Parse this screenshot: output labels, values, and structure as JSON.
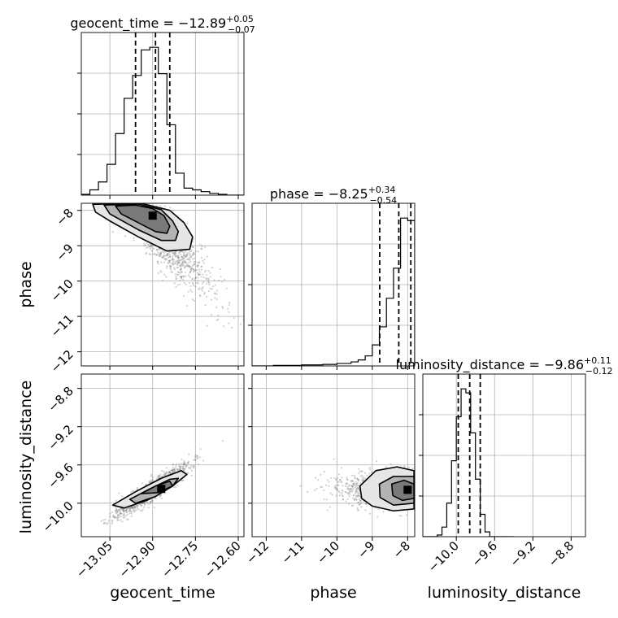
{
  "chart_data": {
    "type": "corner",
    "parameters": [
      "geocent_time",
      "phase",
      "luminosity_distance"
    ],
    "titles": [
      {
        "param": "geocent_time",
        "prefix": "geocent_time = ",
        "median": "−12.89",
        "plus": "+0.05",
        "minus": "−0.07"
      },
      {
        "param": "phase",
        "prefix": "phase = ",
        "median": "−8.25",
        "plus": "+0.34",
        "minus": "−0.54"
      },
      {
        "param": "luminosity_distance",
        "prefix": "luminosity_distance = ",
        "median": "−9.86",
        "plus": "+0.11",
        "minus": "−0.12"
      }
    ],
    "axis_labels": {
      "geocent_time": "geocent_time",
      "phase": "phase",
      "luminosity_distance": "luminosity_distance"
    },
    "ranges": {
      "geocent_time": [
        -13.15,
        -12.58
      ],
      "phase": [
        -12.4,
        -7.8
      ],
      "luminosity_distance": [
        -10.35,
        -8.65
      ]
    },
    "ticks": {
      "geocent_time": [
        {
          "v": -13.05,
          "label": "−13.05"
        },
        {
          "v": -12.9,
          "label": "−12.90"
        },
        {
          "v": -12.75,
          "label": "−12.75"
        },
        {
          "v": -12.6,
          "label": "−12.60"
        }
      ],
      "phase": [
        {
          "v": -12,
          "label": "−12"
        },
        {
          "v": -11,
          "label": "−11"
        },
        {
          "v": -10,
          "label": "−10"
        },
        {
          "v": -9,
          "label": "−9"
        },
        {
          "v": -8,
          "label": "−8"
        }
      ],
      "luminosity_distance": [
        {
          "v": -10.0,
          "label": "−10.0"
        },
        {
          "v": -9.6,
          "label": "−9.6"
        },
        {
          "v": -9.2,
          "label": "−9.2"
        },
        {
          "v": -8.8,
          "label": "−8.8"
        }
      ]
    },
    "quantiles": {
      "geocent_time": [
        -12.96,
        -12.89,
        -12.84
      ],
      "phase": [
        -8.79,
        -8.25,
        -7.91
      ],
      "luminosity_distance": [
        -9.98,
        -9.86,
        -9.75
      ]
    },
    "histograms": {
      "geocent_time": {
        "edges": [
          -13.15,
          -13.12,
          -13.09,
          -13.06,
          -13.03,
          -13.0,
          -12.97,
          -12.94,
          -12.91,
          -12.88,
          -12.85,
          -12.82,
          -12.79,
          -12.76,
          -12.73,
          -12.7,
          -12.67,
          -12.64,
          -12.61,
          -12.58
        ],
        "counts": [
          1,
          6,
          15,
          35,
          70,
          110,
          136,
          165,
          168,
          138,
          80,
          25,
          8,
          6,
          4,
          2,
          1,
          0,
          0
        ]
      },
      "phase": {
        "edges": [
          -12.4,
          -12.2,
          -12.0,
          -11.8,
          -11.6,
          -11.4,
          -11.2,
          -11.0,
          -10.8,
          -10.6,
          -10.4,
          -10.2,
          -10.0,
          -9.8,
          -9.6,
          -9.4,
          -9.2,
          -9.0,
          -8.8,
          -8.6,
          -8.4,
          -8.2,
          -8.0,
          -7.8
        ],
        "counts": [
          0,
          0,
          0,
          1,
          1,
          1,
          1,
          2,
          2,
          2,
          3,
          3,
          5,
          5,
          8,
          12,
          20,
          42,
          78,
          135,
          195,
          295,
          290
        ]
      },
      "luminosity_distance": {
        "edges": [
          -10.35,
          -10.3,
          -10.25,
          -10.2,
          -10.15,
          -10.1,
          -10.05,
          -10.0,
          -9.95,
          -9.9,
          -9.85,
          -9.8,
          -9.75,
          -9.7,
          -9.65,
          -9.6,
          -9.55,
          -9.5,
          -9.45,
          -9.4
        ],
        "counts": [
          0,
          0,
          0,
          2,
          12,
          42,
          95,
          150,
          185,
          180,
          130,
          72,
          28,
          6,
          0,
          0,
          0,
          0,
          0
        ]
      }
    },
    "scatter_2d": {
      "phase_vs_geocent_time": {
        "peak": {
          "x": -12.9,
          "y": -8.15
        },
        "contour_levels": [
          [
            [
              -13.03,
              -7.88
            ],
            [
              -12.96,
              -7.85
            ],
            [
              -12.9,
              -7.95
            ],
            [
              -12.86,
              -8.15
            ],
            [
              -12.84,
              -8.45
            ],
            [
              -12.85,
              -8.65
            ],
            [
              -12.89,
              -8.6
            ],
            [
              -12.95,
              -8.35
            ],
            [
              -13.01,
              -8.1
            ]
          ],
          [
            [
              -13.07,
              -7.85
            ],
            [
              -12.95,
              -7.82
            ],
            [
              -12.87,
              -7.98
            ],
            [
              -12.83,
              -8.3
            ],
            [
              -12.81,
              -8.6
            ],
            [
              -12.82,
              -8.85
            ],
            [
              -12.87,
              -8.85
            ],
            [
              -12.95,
              -8.55
            ],
            [
              -13.05,
              -8.1
            ]
          ],
          [
            [
              -13.11,
              -7.83
            ],
            [
              -12.94,
              -7.8
            ],
            [
              -12.84,
              -8.0
            ],
            [
              -12.79,
              -8.35
            ],
            [
              -12.76,
              -8.75
            ],
            [
              -12.77,
              -9.1
            ],
            [
              -12.85,
              -9.15
            ],
            [
              -12.95,
              -8.75
            ],
            [
              -13.05,
              -8.3
            ],
            [
              -13.1,
              -8.05
            ]
          ]
        ]
      },
      "luminosity_distance_vs_geocent_time": {
        "peak": {
          "x": -12.87,
          "y": -9.85
        },
        "contour_levels": [
          [
            [
              -12.94,
              -9.9
            ],
            [
              -12.89,
              -9.82
            ],
            [
              -12.84,
              -9.77
            ],
            [
              -12.83,
              -9.82
            ],
            [
              -12.88,
              -9.89
            ]
          ],
          [
            [
              -12.98,
              -9.96
            ],
            [
              -12.91,
              -9.85
            ],
            [
              -12.84,
              -9.75
            ],
            [
              -12.81,
              -9.74
            ],
            [
              -12.83,
              -9.82
            ],
            [
              -12.89,
              -9.93
            ],
            [
              -12.96,
              -10.0
            ]
          ],
          [
            [
              -13.04,
              -10.02
            ],
            [
              -12.96,
              -9.88
            ],
            [
              -12.87,
              -9.74
            ],
            [
              -12.8,
              -9.66
            ],
            [
              -12.78,
              -9.7
            ],
            [
              -12.83,
              -9.82
            ],
            [
              -12.92,
              -9.97
            ],
            [
              -13.0,
              -10.05
            ]
          ]
        ]
      },
      "luminosity_distance_vs_phase": {
        "peak": {
          "x": -8.0,
          "y": -9.86
        },
        "contour_levels": [
          [
            [
              -8.45,
              -9.8
            ],
            [
              -8.1,
              -9.76
            ],
            [
              -7.82,
              -9.8
            ],
            [
              -7.82,
              -9.95
            ],
            [
              -8.15,
              -9.97
            ],
            [
              -8.42,
              -9.92
            ]
          ],
          [
            [
              -8.8,
              -9.8
            ],
            [
              -8.4,
              -9.72
            ],
            [
              -7.82,
              -9.72
            ],
            [
              -7.82,
              -10.0
            ],
            [
              -8.4,
              -10.02
            ],
            [
              -8.78,
              -9.94
            ]
          ],
          [
            [
              -9.35,
              -9.82
            ],
            [
              -8.9,
              -9.66
            ],
            [
              -8.3,
              -9.62
            ],
            [
              -7.82,
              -9.66
            ],
            [
              -7.82,
              -10.06
            ],
            [
              -8.4,
              -10.08
            ],
            [
              -9.0,
              -10.03
            ],
            [
              -9.3,
              -9.95
            ]
          ]
        ]
      }
    },
    "grid": true
  }
}
